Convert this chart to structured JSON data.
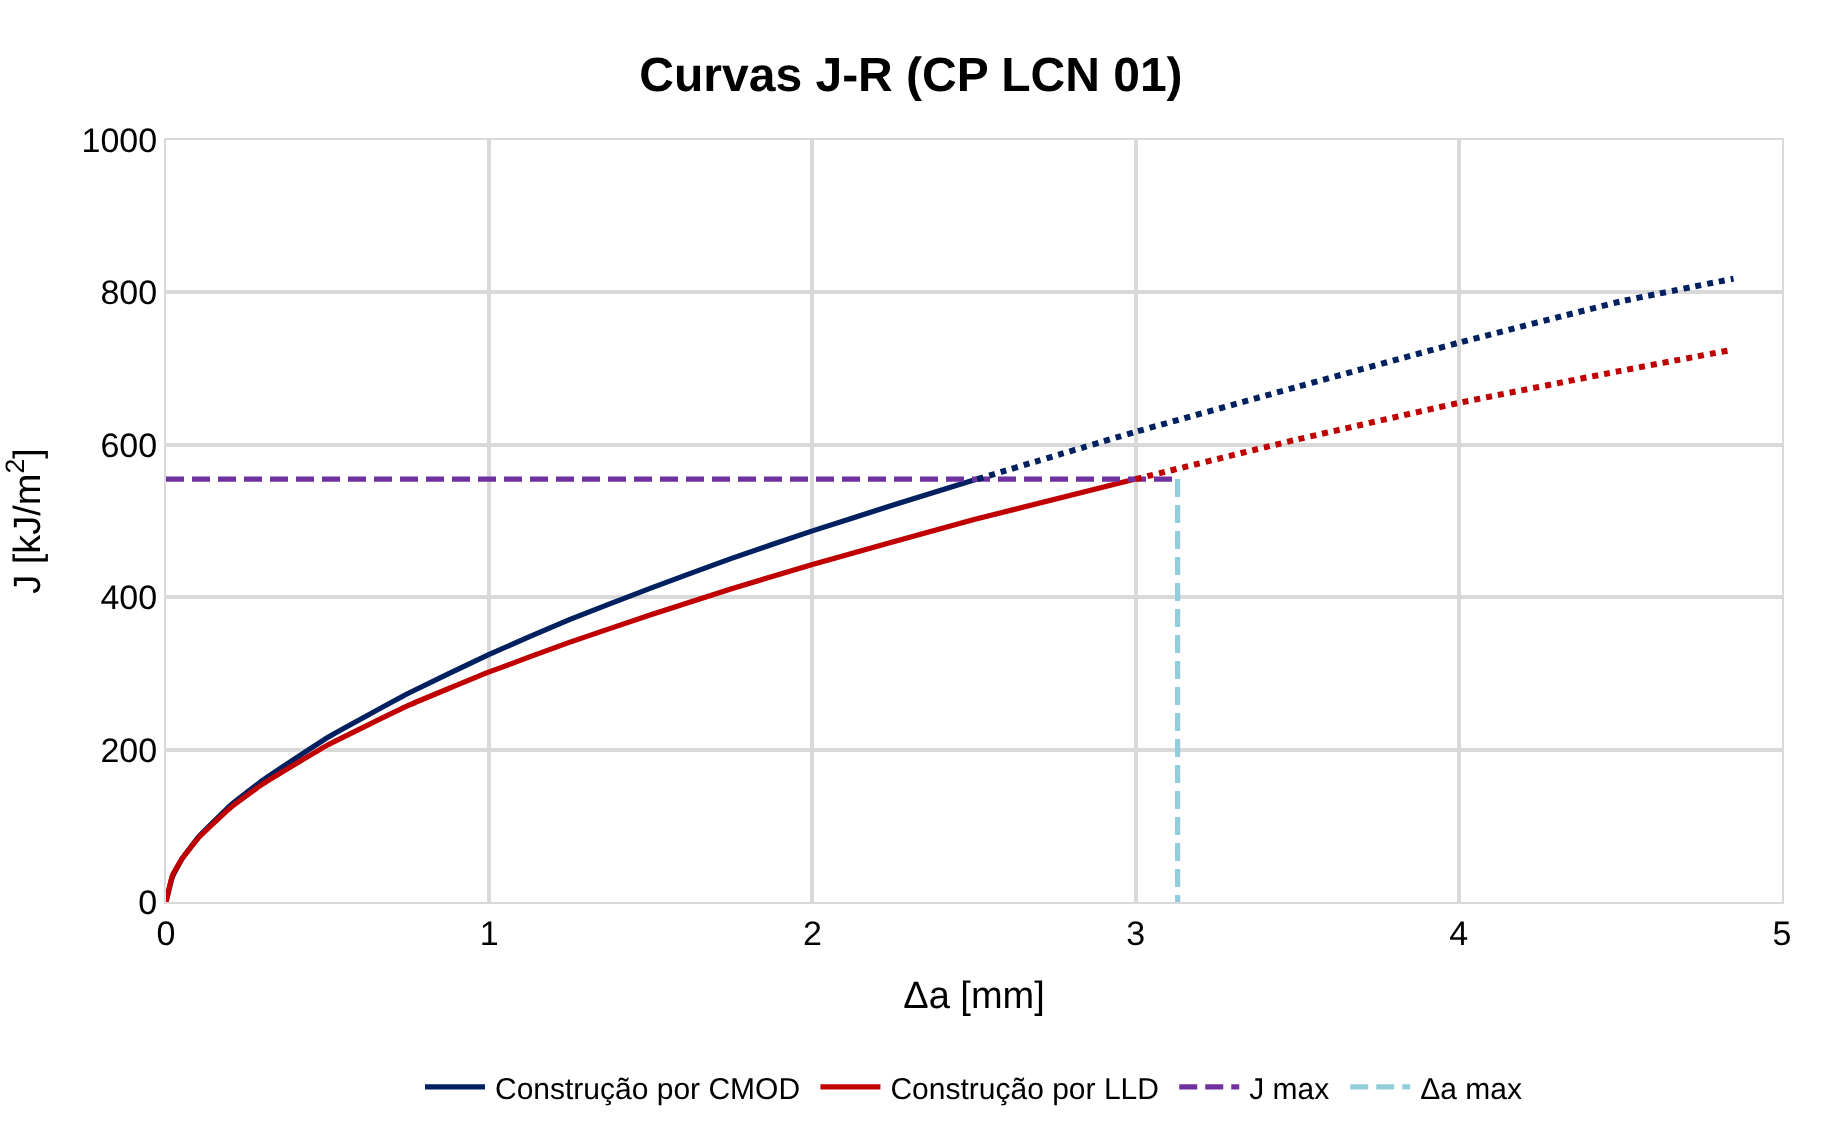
{
  "chart_data": {
    "type": "line",
    "title": "Curvas J-R (CP LCN 01)",
    "xlabel": "Δa [mm]",
    "ylabel": "J [kJ/m$^{2}$]",
    "xlim": [
      0,
      5
    ],
    "xticks": [
      0,
      1,
      2,
      3,
      4,
      5
    ],
    "ylim": [
      0,
      1000
    ],
    "yticks": [
      0,
      200,
      400,
      600,
      800,
      1000
    ],
    "grid": true,
    "legend": "bottom",
    "marker": "none",
    "series": [
      {
        "name": "Construção por CMOD",
        "color": "#002060",
        "line_style": "solid",
        "x": [
          0,
          0.02,
          0.05,
          0.1,
          0.2,
          0.3,
          0.5,
          0.75,
          1,
          1.25,
          1.5,
          1.75,
          2,
          2.25,
          2.51
        ],
        "values": [
          0,
          33,
          57,
          85,
          127,
          160,
          216,
          274,
          325,
          371,
          412,
          451,
          487,
          521,
          555
        ]
      },
      {
        "name": "Construção por LLD",
        "color": "#c00000",
        "line_style": "solid",
        "x": [
          0,
          0.02,
          0.05,
          0.1,
          0.2,
          0.3,
          0.5,
          0.75,
          1,
          1.25,
          1.5,
          1.75,
          2,
          2.5,
          3
        ],
        "values": [
          0,
          35,
          57,
          84,
          124,
          155,
          206,
          258,
          302,
          341,
          377,
          411,
          443,
          502,
          555
        ]
      },
      {
        "name": "J max",
        "color": "#7030a0",
        "line_style": "dashed",
        "x": [
          0,
          3.13
        ],
        "values": [
          555,
          555
        ]
      },
      {
        "name": "Δa max",
        "color": "#92cddc",
        "line_style": "dashed",
        "x": [
          3.13,
          3.13
        ],
        "values": [
          555,
          0
        ]
      },
      {
        "color": "#002060",
        "line_style": "dotted",
        "x": [
          2.51,
          3,
          3.5,
          4,
          4.5,
          4.85
        ],
        "values": [
          555,
          617,
          676,
          734,
          788,
          818
        ]
      },
      {
        "color": "#c00000",
        "line_style": "dotted",
        "x": [
          3,
          3.5,
          4,
          4.5,
          4.85
        ],
        "values": [
          555,
          607,
          655,
          697,
          725
        ]
      }
    ]
  }
}
